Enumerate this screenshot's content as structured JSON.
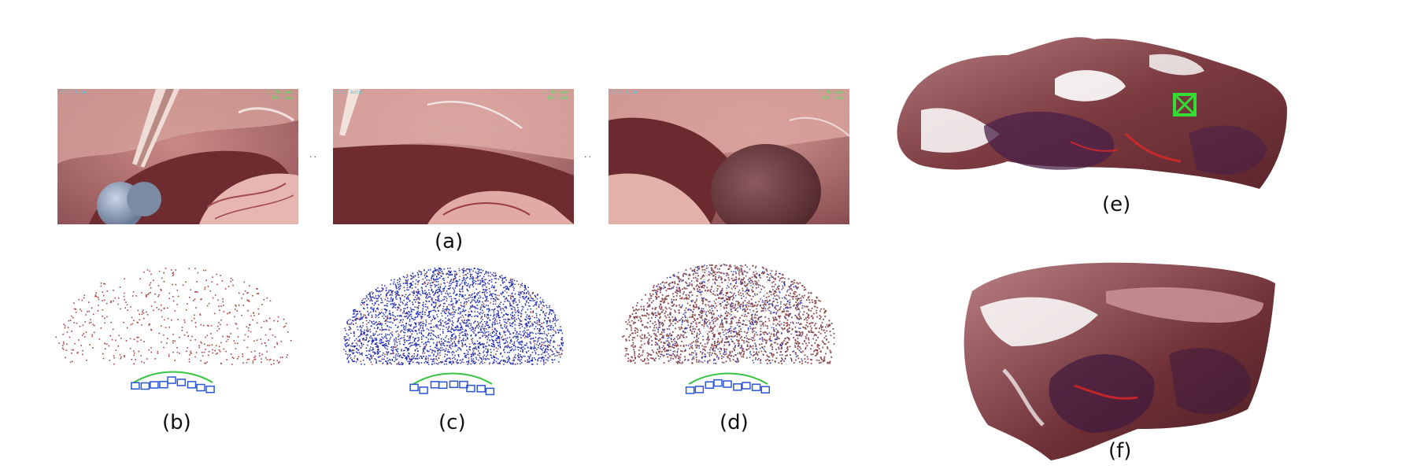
{
  "captions": {
    "a": "(a)",
    "b": "(b)",
    "c": "(c)",
    "d": "(d)",
    "e": "(e)",
    "f": "(f)"
  },
  "frames": [
    {
      "osd_left": "Shtr Auto",
      "osd_right": "Gr Medium\nEnh Low"
    },
    {
      "osd_left": "Shtr Auto",
      "osd_right": "Gr Medium\nEnh Low"
    },
    {
      "osd_left": "Shtr Auto",
      "osd_right": "Gr Medium\nEnh Low"
    }
  ],
  "ellipsis": "··",
  "colors": {
    "tissue": "#8a4a4e",
    "sparse_points": "#a8473f",
    "dense_points": "#1f2bb0",
    "cameras": "#2a55d6",
    "trajectory": "#36c442",
    "marker": "#33dd33"
  }
}
